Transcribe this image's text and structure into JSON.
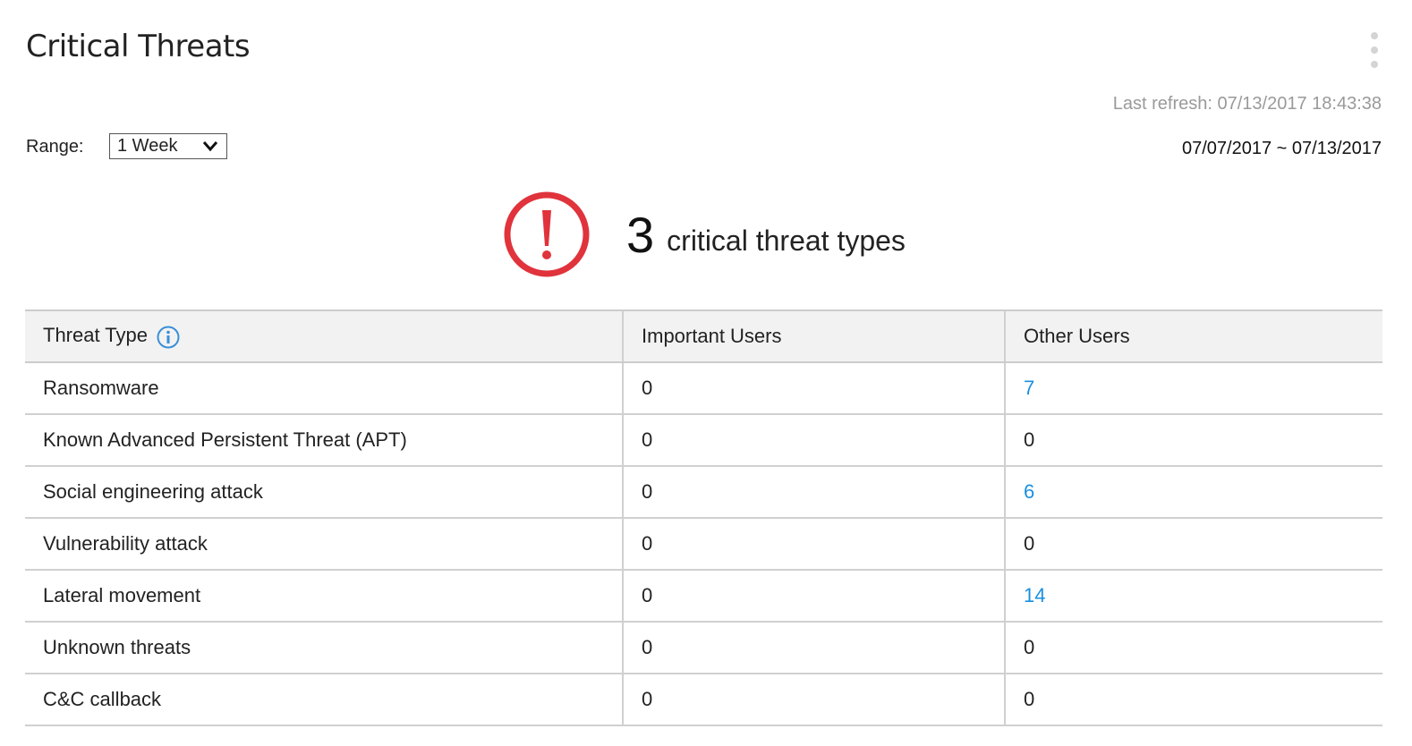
{
  "header": {
    "title": "Critical Threats",
    "menu_icon": "kebab-menu-icon",
    "last_refresh": "Last refresh:  07/13/2017 18:43:38"
  },
  "range": {
    "label": "Range:",
    "selected": "1 Week"
  },
  "date_range": "07/07/2017  ~  07/13/2017",
  "summary": {
    "icon": "alert-circle-icon",
    "count": "3",
    "label": "critical threat types",
    "color": "#e0333c"
  },
  "table": {
    "columns": [
      "Threat Type",
      "Important Users",
      "Other Users"
    ],
    "link_color": "#1a8fe0",
    "rows": [
      {
        "type": "Ransomware",
        "important": "0",
        "other": "7",
        "other_link": true
      },
      {
        "type": "Known Advanced Persistent Threat (APT)",
        "important": "0",
        "other": "0",
        "other_link": false
      },
      {
        "type": "Social engineering attack",
        "important": "0",
        "other": "6",
        "other_link": true
      },
      {
        "type": "Vulnerability attack",
        "important": "0",
        "other": "0",
        "other_link": false
      },
      {
        "type": "Lateral movement",
        "important": "0",
        "other": "14",
        "other_link": true
      },
      {
        "type": "Unknown threats",
        "important": "0",
        "other": "0",
        "other_link": false
      },
      {
        "type": "C&C callback",
        "important": "0",
        "other": "0",
        "other_link": false
      }
    ]
  }
}
